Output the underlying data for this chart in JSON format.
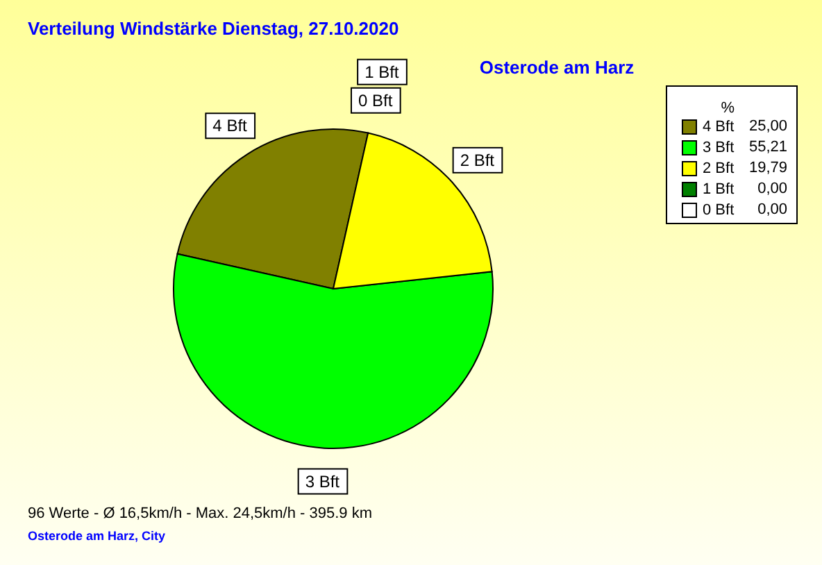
{
  "chart_data": {
    "type": "pie",
    "title": "Verteilung Windstärke  Dienstag, 27.10.2020",
    "subtitle": "Osterode am Harz",
    "categories": [
      "4 Bft",
      "3 Bft",
      "2 Bft",
      "1 Bft",
      "0 Bft"
    ],
    "values": [
      25.0,
      55.21,
      19.79,
      0.0,
      0.0
    ],
    "value_labels": [
      "25,00",
      "55,21",
      "19,79",
      "0,00",
      "0,00"
    ],
    "colors": [
      "#808000",
      "#00ff00",
      "#ffff00",
      "#008000",
      "#ffffff"
    ],
    "legend": "top right",
    "legend_title": "%",
    "annotations": [
      "96 Werte   -   Ø 16,5km/h  -  Max. 24,5km/h   -   395.9 km",
      "Osterode am Harz, City"
    ]
  }
}
